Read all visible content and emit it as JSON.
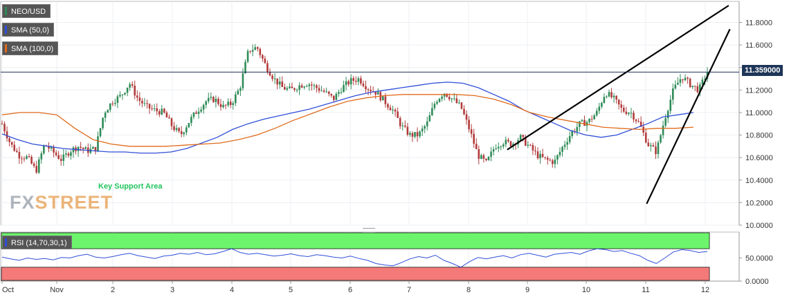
{
  "indicators": {
    "symbol": {
      "label": "NEO/USD",
      "color": "#2e8b57"
    },
    "sma50": {
      "label": "SMA (50,0)",
      "color": "#2f4ed8"
    },
    "sma100": {
      "label": "SMA (100,0)",
      "color": "#e06a1b"
    },
    "rsi": {
      "label": "RSI (14,70,30,1)",
      "color": "#2f4ed8"
    }
  },
  "current_price_label": "11.359000",
  "annotation": "Key Support Area",
  "watermark": {
    "part1": "FX",
    "part2": "STREET"
  },
  "colors": {
    "up": "#2e8b57",
    "down": "#b23b3b",
    "overbought": "#6cf56c",
    "oversold": "#f47a7a",
    "price_line": "#1d3557"
  },
  "chart_data": [
    {
      "type": "candlestick",
      "title": "",
      "x_tick_labels": [
        "Oct",
        "Nov",
        "2",
        "3",
        "4",
        "5",
        "6",
        "7",
        "8",
        "9",
        "10",
        "11",
        "12"
      ],
      "y_ticks": [
        10.0,
        10.2,
        10.4,
        10.6,
        10.8,
        11.0,
        11.2,
        11.4,
        11.6,
        11.8
      ],
      "ylim": [
        10.0,
        11.95
      ],
      "y_tick_format": "4dp",
      "current_price": 11.359,
      "close_path": [
        10.9,
        10.72,
        10.62,
        10.6,
        10.48,
        10.72,
        10.65,
        10.58,
        10.66,
        10.7,
        10.66,
        10.68,
        11.0,
        11.1,
        11.15,
        11.26,
        11.12,
        11.05,
        11.02,
        11.0,
        10.88,
        10.8,
        10.92,
        11.02,
        11.1,
        11.12,
        11.05,
        11.08,
        11.22,
        11.55,
        11.58,
        11.42,
        11.3,
        11.22,
        11.2,
        11.24,
        11.26,
        11.22,
        11.18,
        11.12,
        11.22,
        11.28,
        11.3,
        11.22,
        11.18,
        11.1,
        11.02,
        10.88,
        10.8,
        10.8,
        10.9,
        11.1,
        11.18,
        11.12,
        11.05,
        10.85,
        10.62,
        10.55,
        10.7,
        10.74,
        10.72,
        10.78,
        10.7,
        10.62,
        10.58,
        10.56,
        10.7,
        10.82,
        10.9,
        10.92,
        11.0,
        11.18,
        11.12,
        11.02,
        11.0,
        10.9,
        10.72,
        10.65,
        10.95,
        11.2,
        11.32,
        11.25,
        11.2,
        11.36
      ],
      "series": [
        {
          "name": "SMA (50,0)",
          "color": "#2f4ed8",
          "values": [
            10.81,
            10.76,
            10.72,
            10.7,
            10.68,
            10.67,
            10.66,
            10.65,
            10.65,
            10.64,
            10.64,
            10.65,
            10.68,
            10.73,
            10.78,
            10.85,
            10.9,
            10.94,
            10.97,
            11.0,
            11.03,
            11.07,
            11.11,
            11.15,
            11.18,
            11.2,
            11.22,
            11.24,
            11.26,
            11.27,
            11.26,
            11.22,
            11.16,
            11.1,
            11.02,
            10.96,
            10.9,
            10.84,
            10.8,
            10.78,
            10.8,
            10.85,
            10.9,
            10.96,
            10.98,
            11.0
          ]
        },
        {
          "name": "SMA (100,0)",
          "color": "#e06a1b",
          "values": [
            10.98,
            11.0,
            11.0,
            10.98,
            10.86,
            10.76,
            10.72,
            10.7,
            10.7,
            10.7,
            10.71,
            10.72,
            10.73,
            10.76,
            10.8,
            10.86,
            10.93,
            10.99,
            11.05,
            11.1,
            11.13,
            11.15,
            11.16,
            11.16,
            11.16,
            11.16,
            11.15,
            11.12,
            11.07,
            11.0,
            10.96,
            10.93,
            10.9,
            10.87,
            10.86,
            10.85,
            10.86,
            10.86,
            10.87
          ]
        }
      ],
      "trendlines": [
        {
          "from": {
            "x": 8.62,
            "y": 10.67
          },
          "to": {
            "x": 12.4,
            "y": 11.95
          }
        },
        {
          "from": {
            "x": 11.0,
            "y": 10.19
          },
          "to": {
            "x": 12.42,
            "y": 11.74
          }
        }
      ]
    },
    {
      "type": "line",
      "title": "",
      "y_ticks": [
        0,
        50
      ],
      "ylim": [
        0,
        100
      ],
      "y_tick_format": "4dp",
      "overbought": 70,
      "oversold": 30,
      "series": [
        {
          "name": "RSI (14,70,30,1)",
          "color": "#2f4ed8",
          "values": [
            52,
            48,
            45,
            50,
            47,
            49,
            46,
            51,
            50,
            55,
            58,
            52,
            50,
            53,
            57,
            60,
            55,
            52,
            49,
            54,
            56,
            60,
            58,
            62,
            57,
            59,
            64,
            70,
            62,
            58,
            60,
            57,
            54,
            56,
            59,
            55,
            53,
            57,
            55,
            52,
            50,
            54,
            49,
            45,
            38,
            35,
            33,
            40,
            48,
            53,
            50,
            56,
            45,
            38,
            30,
            42,
            51,
            48,
            52,
            55,
            50,
            57,
            60,
            56,
            52,
            58,
            60,
            62,
            58,
            65,
            70,
            68,
            64,
            66,
            60,
            55,
            45,
            38,
            50,
            63,
            68,
            66,
            62,
            64
          ]
        }
      ]
    }
  ]
}
